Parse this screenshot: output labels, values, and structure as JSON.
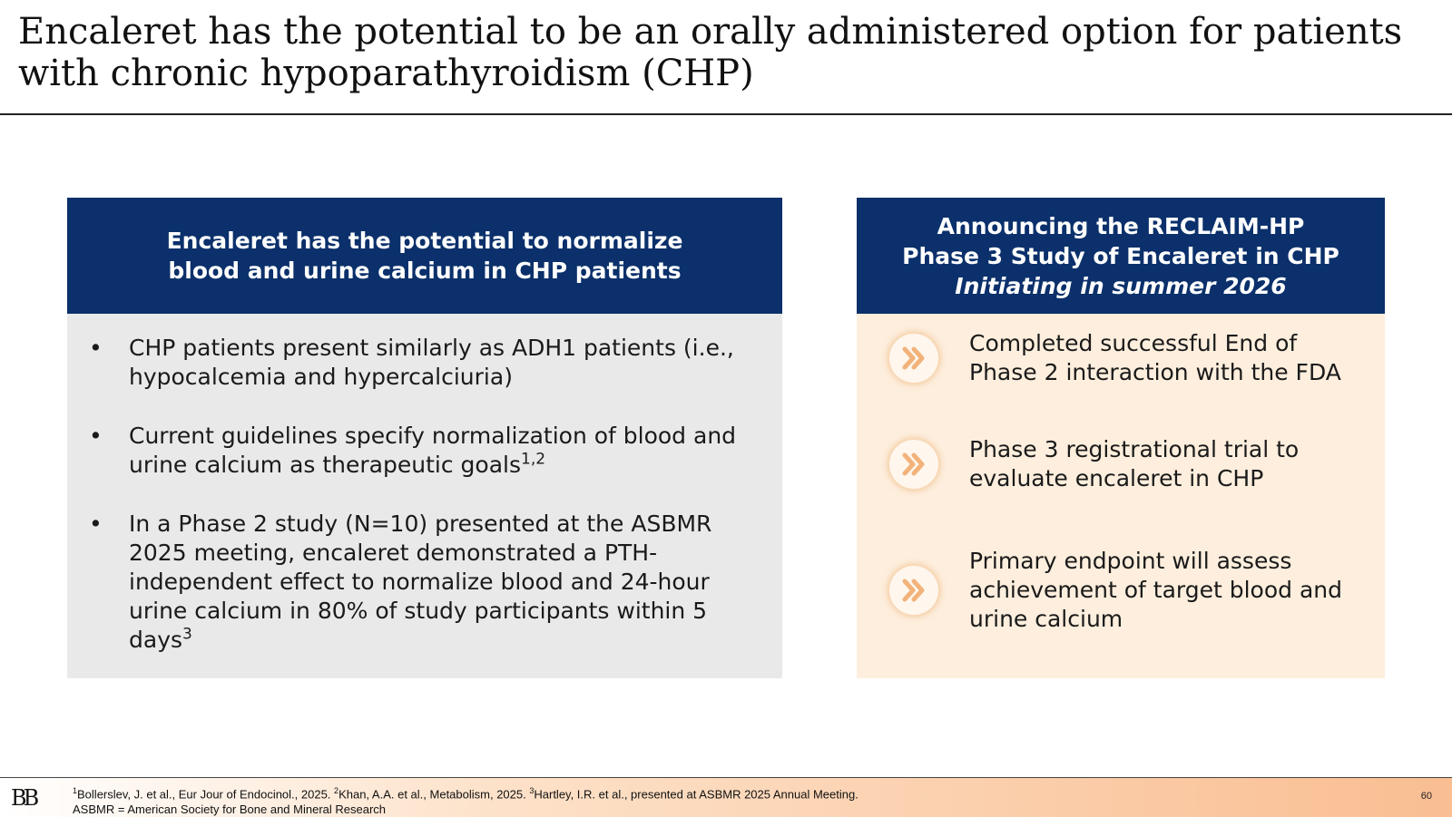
{
  "slide": {
    "title_line1": "Encaleret has the potential to be an orally administered option for patients",
    "title_line2": "with chronic hypoparathyroidism (CHP)"
  },
  "left_panel": {
    "header_line1": "Encaleret has the potential to normalize",
    "header_line2": "blood and urine calcium in CHP patients",
    "bullets": [
      {
        "marker": "•",
        "text": "CHP patients present similarly as ADH1 patients (i.e., hypocalcemia and hypercalciuria)",
        "sup": ""
      },
      {
        "marker": "•",
        "text": "Current guidelines specify normalization of blood and urine calcium as therapeutic goals",
        "sup": "1,2"
      },
      {
        "marker": "•",
        "text": "In a Phase 2 study (N=10) presented at the ASBMR 2025 meeting, encaleret demonstrated a PTH-independent effect to normalize blood and 24-hour urine calcium in 80% of study participants within 5 days",
        "sup": "3"
      }
    ]
  },
  "right_panel": {
    "header_line1": "Announcing the RECLAIM-HP",
    "header_line2": "Phase 3 Study of Encaleret in CHP",
    "header_line3": "Initiating in summer 2026",
    "icon": "double-chevron-right-icon",
    "items": [
      "Completed successful End of Phase 2 interaction with the FDA",
      "Phase 3 registrational trial to evaluate encaleret in CHP",
      "Primary endpoint will assess achievement of target blood and urine calcium"
    ]
  },
  "footer": {
    "logo": "BB",
    "ref1_sup": "1",
    "ref1": "Bollerslev, J. et al., Eur Jour of Endocinol., 2025. ",
    "ref2_sup": "2",
    "ref2": "Khan, A.A. et al., Metabolism, 2025. ",
    "ref3_sup": "3",
    "ref3": "Hartley, I.R. et al., presented at ASBMR 2025 Annual Meeting.",
    "abbreviation": "ASBMR = American Society for Bone and Mineral Research",
    "page_number": "60"
  },
  "colors": {
    "header_navy": "#0b306b",
    "left_panel_bg": "#e9e9e9",
    "right_panel_bg": "#fdeedd",
    "icon_orange": "#f2b27a",
    "footer_gradient_end": "#f9be92"
  }
}
